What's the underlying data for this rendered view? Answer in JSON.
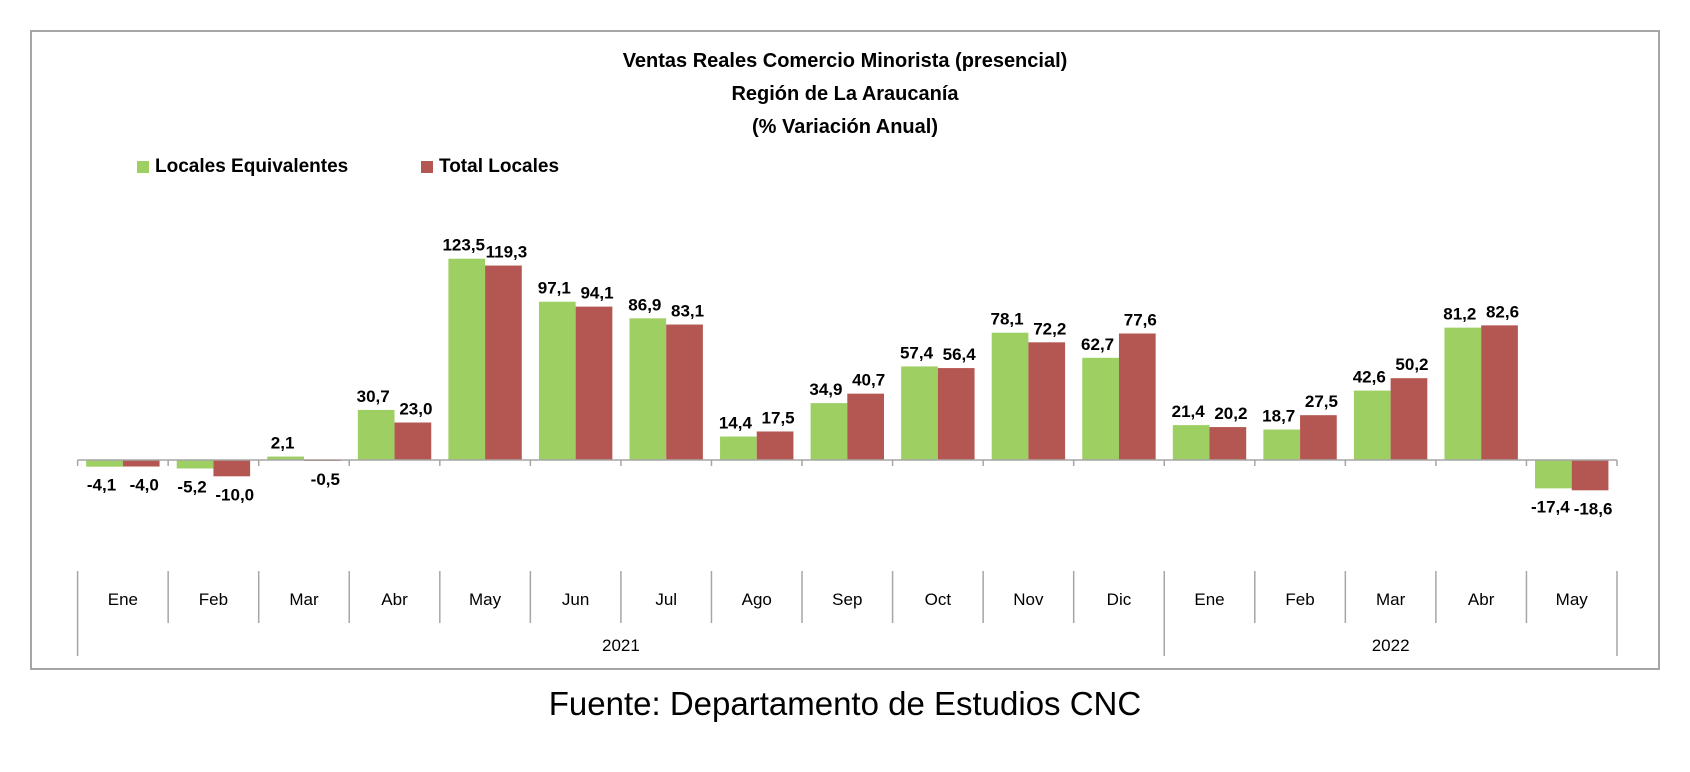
{
  "chart_data": {
    "type": "bar",
    "title": [
      "Ventas Reales Comercio Minorista (presencial)",
      "Región de La Araucanía",
      "(% Variación Anual)"
    ],
    "categories": [
      "Ene",
      "Feb",
      "Mar",
      "Abr",
      "May",
      "Jun",
      "Jul",
      "Ago",
      "Sep",
      "Oct",
      "Nov",
      "Dic",
      "Ene",
      "Feb",
      "Mar",
      "Abr",
      "May"
    ],
    "groups": [
      {
        "label": "2021",
        "count": 12
      },
      {
        "label": "2022",
        "count": 5
      }
    ],
    "series": [
      {
        "name": "Locales Equivalentes",
        "color": "#9dcf63",
        "values": [
          -4.1,
          -5.2,
          2.1,
          30.7,
          123.5,
          97.1,
          86.9,
          14.4,
          34.9,
          57.4,
          78.1,
          62.7,
          21.4,
          18.7,
          42.6,
          81.2,
          -17.4
        ],
        "labels": [
          "-4,1",
          "-5,2",
          "2,1",
          "30,7",
          "123,5",
          "97,1",
          "86,9",
          "14,4",
          "34,9",
          "57,4",
          "78,1",
          "62,7",
          "21,4",
          "18,7",
          "42,6",
          "81,2",
          "-17,4"
        ]
      },
      {
        "name": "Total Locales",
        "color": "#b45752",
        "values": [
          -4.0,
          -10.0,
          -0.5,
          23.0,
          119.3,
          94.1,
          83.1,
          17.5,
          40.7,
          56.4,
          72.2,
          77.6,
          20.2,
          27.5,
          50.2,
          82.6,
          -18.6
        ],
        "labels": [
          "-4,0",
          "-10,0",
          "-0,5",
          "23,0",
          "119,3",
          "94,1",
          "83,1",
          "17,5",
          "40,7",
          "56,4",
          "72,2",
          "77,6",
          "20,2",
          "27,5",
          "50,2",
          "82,6",
          "-18,6"
        ]
      }
    ],
    "xlabel": "",
    "ylabel": "",
    "grid": false,
    "legend_position": "top-left"
  },
  "source": "Fuente: Departamento de Estudios CNC"
}
